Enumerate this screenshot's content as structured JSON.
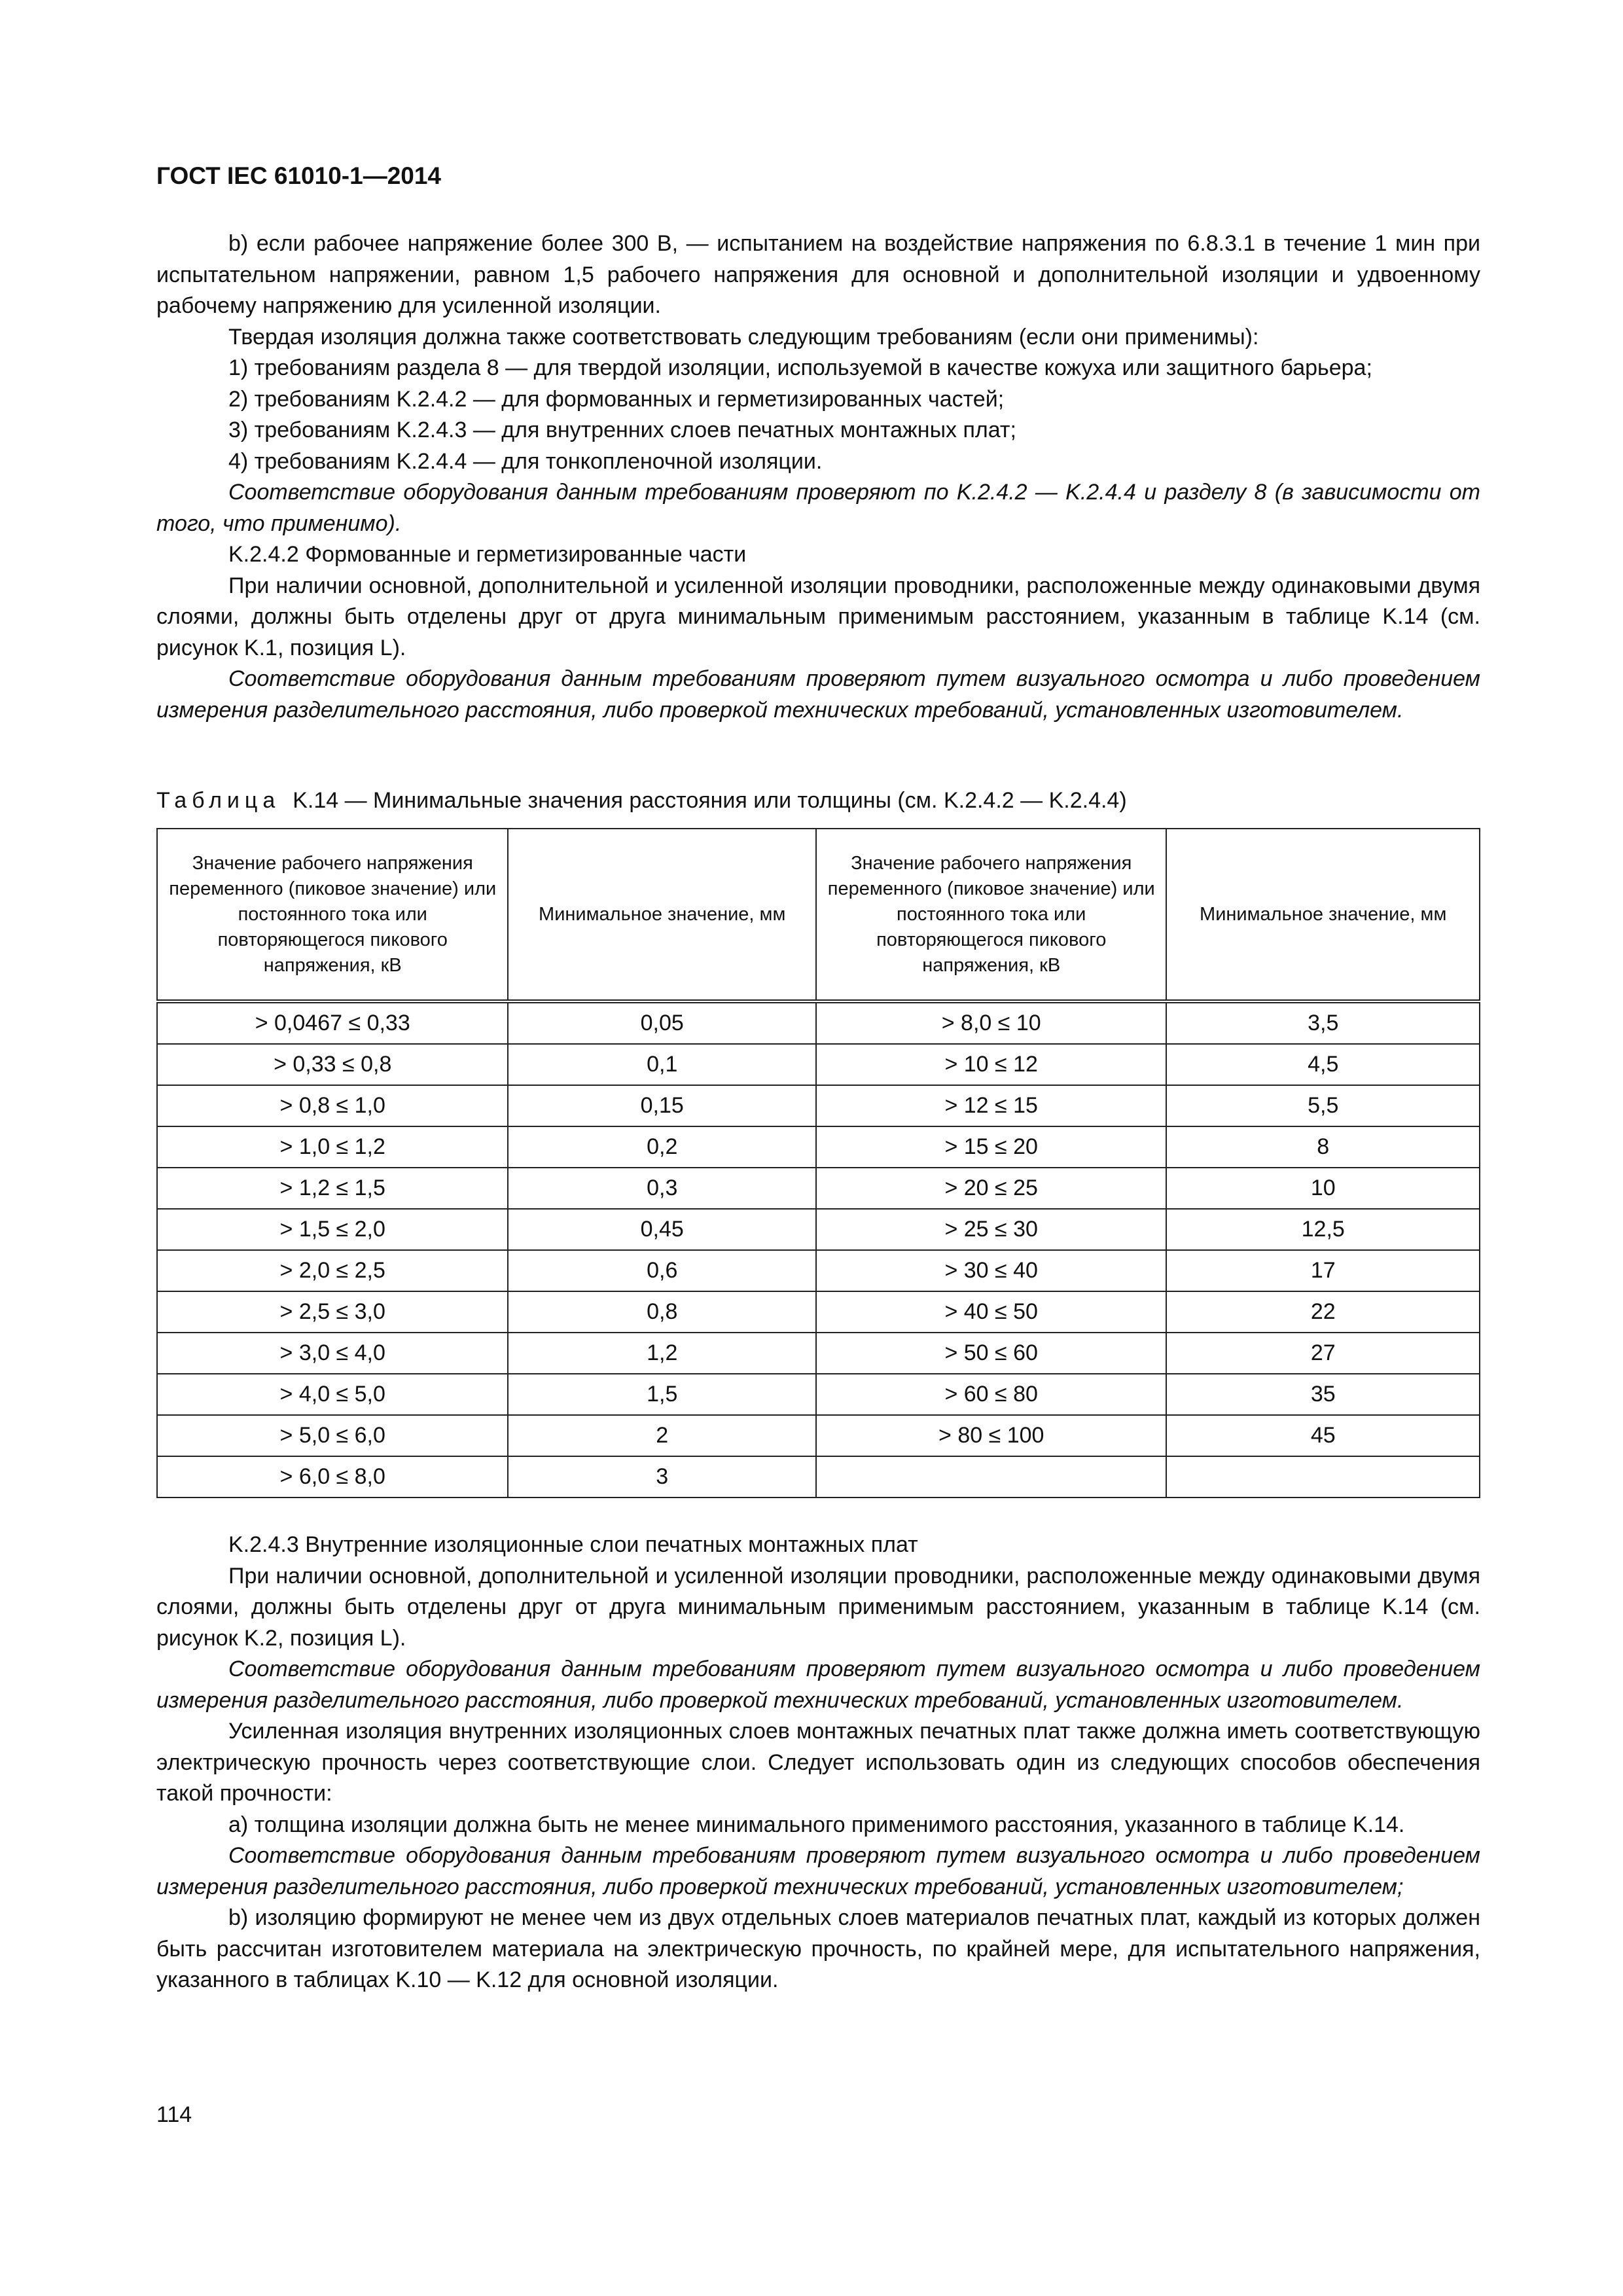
{
  "header": "ГОСТ IEC 61010-1—2014",
  "top": [
    {
      "t": "b) если рабочее напряжение более 300 В, — испытанием на воздействие напряжения по 6.8.3.1 в течение 1 мин при испытательном напряжении, равном 1,5 рабочего напряжения для основной и дополнительной изоляции и удвоенному рабочему напряжению для усиленной изоляции."
    },
    {
      "t": "Твердая изоляция должна также соответствовать следующим требованиям (если они применимы):"
    },
    {
      "t": "1) требованиям раздела 8 — для твердой изоляции, используемой в качестве кожуха или защитного барьера;"
    },
    {
      "t": "2) требованиям K.2.4.2 — для формованных и герметизированных частей;"
    },
    {
      "t": "3) требованиям K.2.4.3 — для внутренних слоев печатных монтажных плат;"
    },
    {
      "t": "4) требованиям K.2.4.4 — для тонкопленочной изоляции."
    },
    {
      "t": "Соответствие оборудования данным требованиям проверяют по K.2.4.2 — K.2.4.4 и разделу 8 (в зависимости от того, что применимо).",
      "i": true
    },
    {
      "t": "K.2.4.2 Формованные и герметизированные части"
    },
    {
      "t": "При наличии основной, дополнительной и усиленной изоляции проводники, расположенные между одинаковыми двумя слоями, должны быть отделены друг от друга минимальным применимым расстоянием, указанным в таблице K.14 (см. рисунок K.1, позиция L)."
    },
    {
      "t": "Соответствие оборудования данным требованиям проверяют путем визуального осмотра и либо проведением измерения разделительного расстояния, либо проверкой технических требований, установленных изготовителем.",
      "i": true
    }
  ],
  "table": {
    "caption_label": "Таблица",
    "caption": "K.14 — Минимальные значения расстояния или толщины (см. K.2.4.2 — K.2.4.4)",
    "headers": [
      "Значение рабочего напряжения переменного (пиковое значение) или постоянного тока или повторяющегося пикового напряжения, кВ",
      "Минимальное значение, мм",
      "Значение рабочего напряжения переменного (пиковое значение) или постоянного тока или повторяющегося пикового напряжения, кВ",
      "Минимальное значение, мм"
    ],
    "rows": [
      [
        "> 0,0467 ≤ 0,33",
        "0,05",
        "> 8,0 ≤ 10",
        "3,5"
      ],
      [
        "> 0,33 ≤ 0,8",
        "0,1",
        "> 10 ≤ 12",
        "4,5"
      ],
      [
        "> 0,8 ≤ 1,0",
        "0,15",
        "> 12 ≤ 15",
        "5,5"
      ],
      [
        "> 1,0 ≤ 1,2",
        "0,2",
        "> 15 ≤ 20",
        "8"
      ],
      [
        "> 1,2 ≤ 1,5",
        "0,3",
        "> 20 ≤ 25",
        "10"
      ],
      [
        "> 1,5 ≤ 2,0",
        "0,45",
        "> 25 ≤ 30",
        "12,5"
      ],
      [
        "> 2,0 ≤ 2,5",
        "0,6",
        "> 30 ≤ 40",
        "17"
      ],
      [
        "> 2,5 ≤ 3,0",
        "0,8",
        "> 40 ≤ 50",
        "22"
      ],
      [
        "> 3,0 ≤ 4,0",
        "1,2",
        "> 50 ≤ 60",
        "27"
      ],
      [
        "> 4,0 ≤ 5,0",
        "1,5",
        "> 60 ≤ 80",
        "35"
      ],
      [
        "> 5,0 ≤ 6,0",
        "2",
        "> 80 ≤ 100",
        "45"
      ],
      [
        "> 6,0 ≤ 8,0",
        "3",
        "",
        ""
      ]
    ]
  },
  "bottom": [
    {
      "t": "K.2.4.3 Внутренние изоляционные слои печатных монтажных плат"
    },
    {
      "t": "При наличии основной, дополнительной и усиленной изоляции проводники, расположенные между одинаковыми двумя слоями, должны быть отделены друг от друга минимальным применимым расстоянием, указанным в таблице K.14 (см. рисунок K.2, позиция L)."
    },
    {
      "t": "Соответствие оборудования данным требованиям проверяют путем визуального осмотра и либо проведением измерения разделительного расстояния, либо проверкой технических требований, установленных изготовителем.",
      "i": true
    },
    {
      "t": "Усиленная изоляция внутренних изоляционных слоев монтажных печатных плат также должна иметь соответствующую электрическую прочность через соответствующие слои. Следует использовать один из следующих способов обеспечения такой прочности:"
    },
    {
      "t": "a) толщина изоляции должна быть не менее минимального применимого расстояния, указанного в таблице K.14."
    },
    {
      "t": "Соответствие оборудования данным требованиям проверяют путем визуального осмотра и либо проведением измерения разделительного расстояния, либо проверкой технических требований, установленных изготовителем;",
      "i": true
    },
    {
      "t": "b) изоляцию формируют не менее чем из двух отдельных слоев материалов печатных плат, каждый из которых должен быть рассчитан изготовителем материала на электрическую прочность, по крайней мере, для испытательного напряжения, указанного в таблицах K.10 — K.12 для основной изоляции."
    }
  ],
  "page_number": "114"
}
